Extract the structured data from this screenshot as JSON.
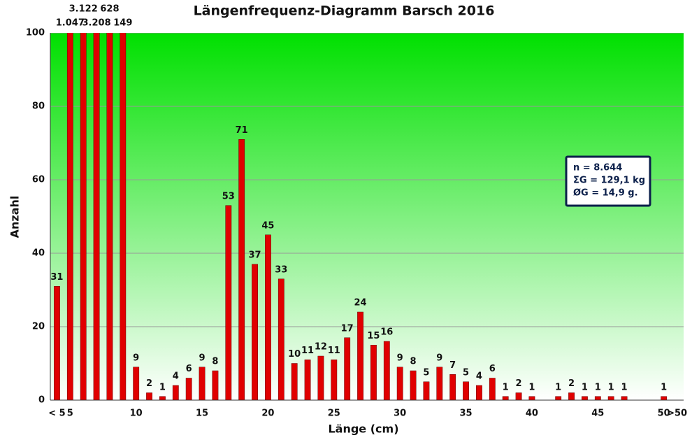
{
  "chart_data": {
    "type": "bar",
    "title": "Längenfrequenz-Diagramm Barsch 2016",
    "x_label": "Länge (cm)",
    "y_label": "Anzahl",
    "categories": [
      "< 5",
      "5",
      null,
      null,
      null,
      null,
      "10",
      null,
      null,
      null,
      null,
      "15",
      null,
      null,
      null,
      null,
      "20",
      null,
      null,
      null,
      null,
      "25",
      null,
      null,
      null,
      null,
      "30",
      null,
      null,
      null,
      null,
      "35",
      null,
      null,
      null,
      null,
      "40",
      null,
      null,
      null,
      null,
      "45",
      null,
      null,
      null,
      null,
      "50",
      ">50"
    ],
    "values": [
      31,
      1047,
      3122,
      3208,
      628,
      149,
      9,
      2,
      1,
      4,
      6,
      9,
      8,
      53,
      71,
      37,
      45,
      33,
      10,
      11,
      12,
      11,
      17,
      24,
      15,
      16,
      9,
      8,
      5,
      9,
      7,
      5,
      4,
      6,
      1,
      2,
      1,
      null,
      1,
      2,
      1,
      1,
      1,
      1,
      null,
      null,
      1,
      null
    ],
    "value_labels": [
      "31",
      "1.047",
      "3.122",
      "3.208",
      "628",
      "149",
      "9",
      "2",
      "1",
      "4",
      "6",
      "9",
      "8",
      "53",
      "71",
      "37",
      "45",
      "33",
      "10",
      "11",
      "12",
      "11",
      "17",
      "24",
      "15",
      "16",
      "9",
      "8",
      "5",
      "9",
      "7",
      "5",
      "4",
      "6",
      "1",
      "2",
      "1",
      null,
      "1",
      "2",
      "1",
      "1",
      "1",
      "1",
      null,
      null,
      "1",
      null
    ],
    "color": "#e00000",
    "ylim": [
      0,
      100
    ],
    "yticks": [
      0,
      20,
      40,
      60,
      80,
      100
    ],
    "grid": true,
    "annotations": [
      "n = 8.644",
      "ΣG = 129,1 kg",
      "ØG = 14,9 g."
    ]
  }
}
